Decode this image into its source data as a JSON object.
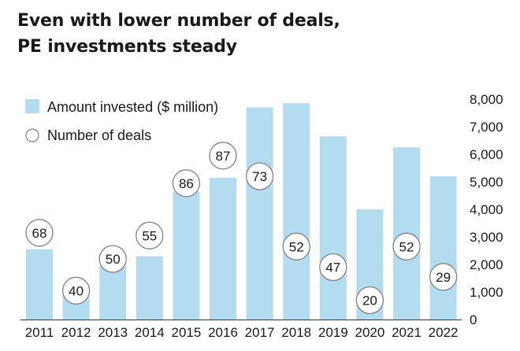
{
  "chart_data": {
    "type": "bar",
    "title": [
      "Even with lower number of deals,",
      "PE investments steady"
    ],
    "categories": [
      "2011",
      "2012",
      "2013",
      "2014",
      "2015",
      "2016",
      "2017",
      "2018",
      "2019",
      "2020",
      "2021",
      "2022"
    ],
    "series": [
      {
        "name": "Amount invested ($ million)",
        "type": "bar",
        "values": [
          2550,
          850,
          1950,
          2300,
          4650,
          5150,
          7700,
          7850,
          6650,
          4000,
          6250,
          5200
        ]
      },
      {
        "name": "Number of deals",
        "type": "labels",
        "values": [
          68,
          40,
          50,
          55,
          86,
          87,
          73,
          52,
          47,
          20,
          52,
          29
        ]
      }
    ],
    "y_axis": {
      "position": "right",
      "min": 0,
      "max": 8000,
      "ticks": [
        0,
        1000,
        2000,
        3000,
        4000,
        5000,
        6000,
        7000,
        8000
      ],
      "tick_labels": [
        "0",
        "1,000",
        "2,000",
        "3,000",
        "4,000",
        "5,000",
        "6,000",
        "7,000",
        "8,000"
      ]
    },
    "deal_marker_amounts": [
      3150,
      1050,
      2200,
      3050,
      4950,
      5950,
      5200,
      2650,
      1900,
      700,
      2650,
      1550
    ],
    "grid": false,
    "legend_position": "top-left",
    "colors": {
      "bar": "#b4dcf0",
      "marker_stroke": "#808080",
      "marker_fill": "#ffffff",
      "text": "#1a1a1a"
    }
  }
}
